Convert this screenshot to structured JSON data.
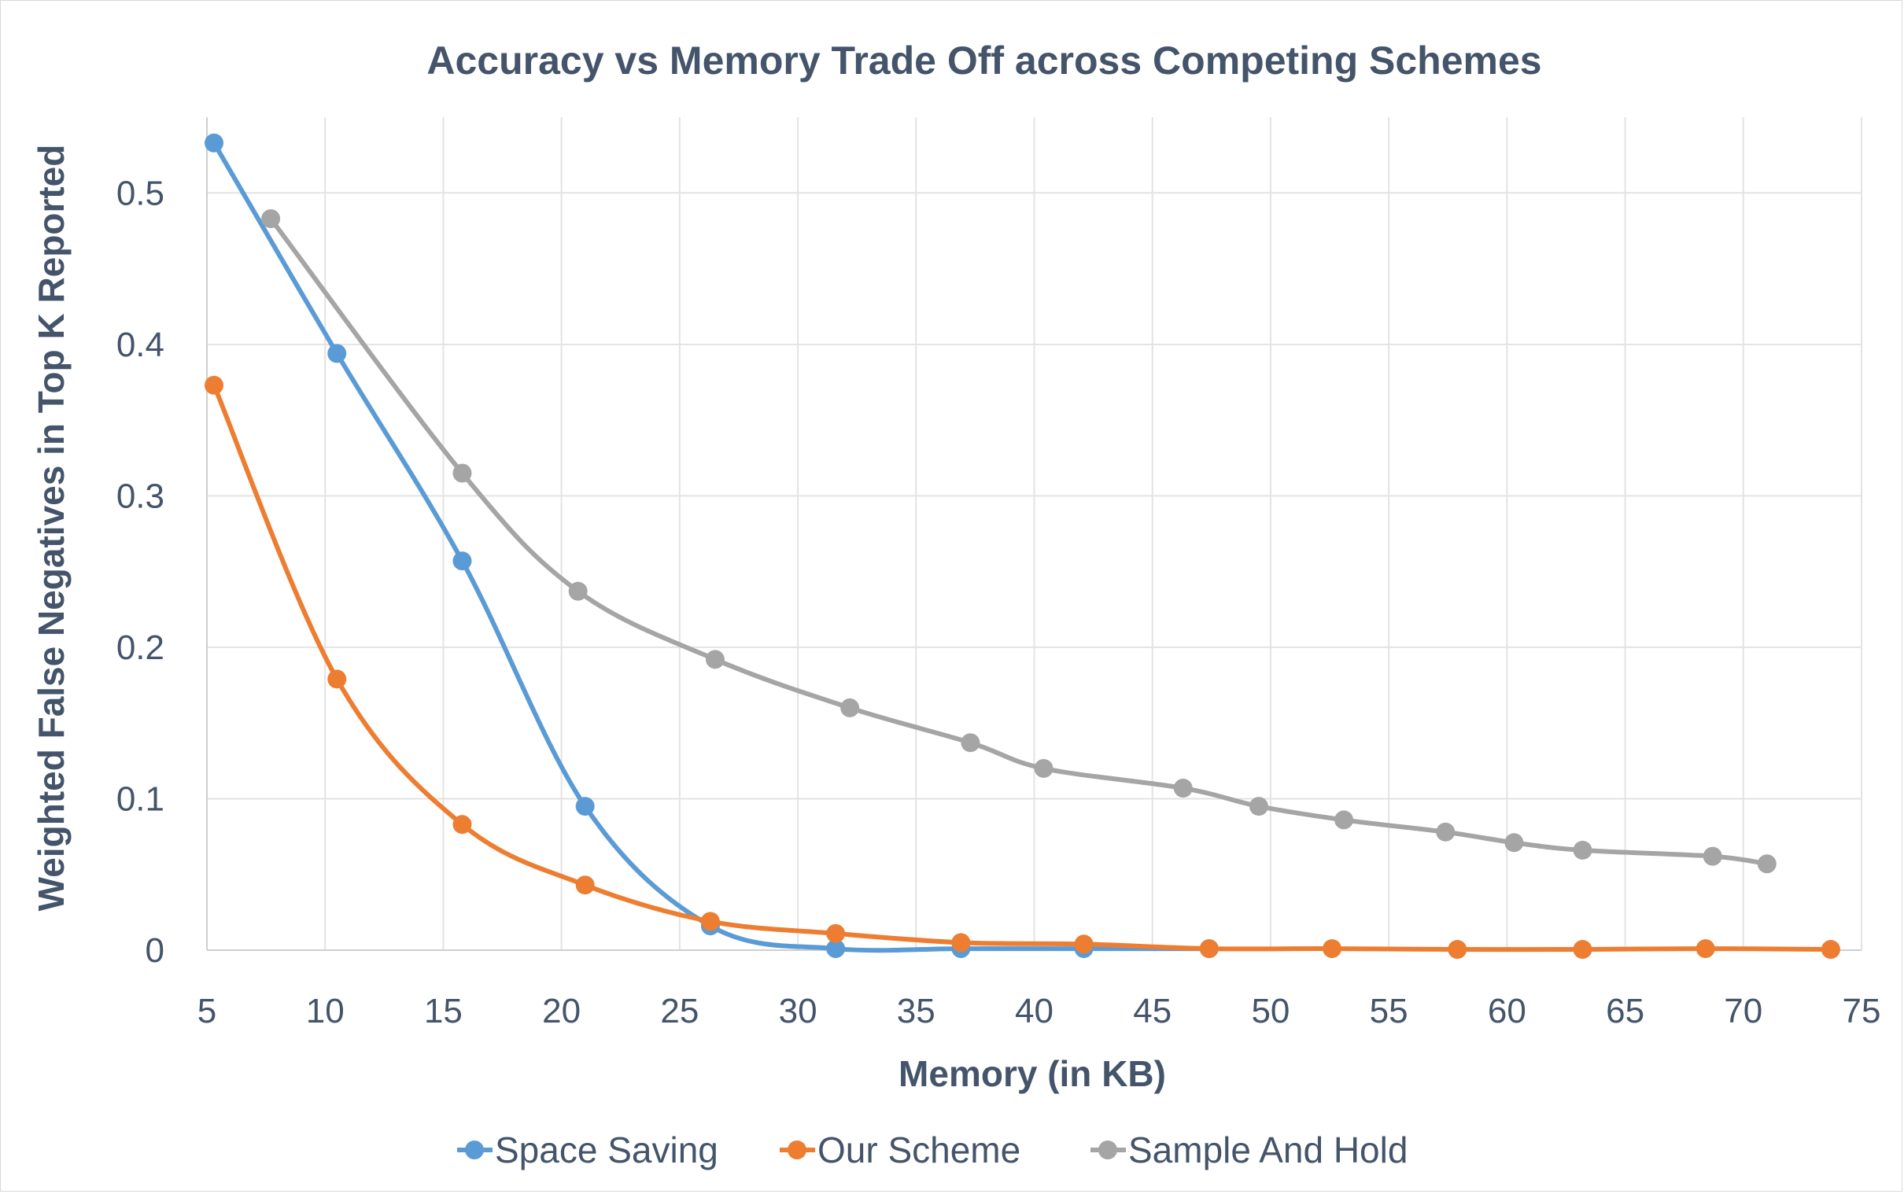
{
  "chart_data": {
    "type": "scatter",
    "title": "Accuracy vs Memory Trade Off across Competing Schemes",
    "xlabel": "Memory (in KB)",
    "ylabel": "Weighted False Negatives in Top K Reported",
    "xlim": [
      5,
      75
    ],
    "ylim": [
      0,
      0.55
    ],
    "x_ticks": [
      5,
      10,
      15,
      20,
      25,
      30,
      35,
      40,
      45,
      50,
      55,
      60,
      65,
      70,
      75
    ],
    "y_ticks": [
      0,
      0.1,
      0.2,
      0.3,
      0.4,
      0.5
    ],
    "grid": true,
    "smooth_lines": true,
    "legend_position": "bottom",
    "series": [
      {
        "name": "Space Saving",
        "color": "#5b9bd5",
        "points": [
          [
            5.3,
            0.533
          ],
          [
            10.5,
            0.394
          ],
          [
            15.8,
            0.257
          ],
          [
            21.0,
            0.095
          ],
          [
            26.3,
            0.016
          ],
          [
            31.6,
            0.001
          ],
          [
            36.9,
            0.001
          ],
          [
            42.1,
            0.001
          ],
          [
            47.4,
            0.001
          ]
        ]
      },
      {
        "name": "Our Scheme",
        "color": "#ed7d31",
        "points": [
          [
            5.3,
            0.373
          ],
          [
            10.5,
            0.179
          ],
          [
            15.8,
            0.083
          ],
          [
            21.0,
            0.043
          ],
          [
            26.3,
            0.019
          ],
          [
            31.6,
            0.011
          ],
          [
            36.9,
            0.005
          ],
          [
            42.1,
            0.004
          ],
          [
            47.4,
            0.001
          ],
          [
            52.6,
            0.001
          ],
          [
            57.9,
            0.0005
          ],
          [
            63.2,
            0.0005
          ],
          [
            68.4,
            0.001
          ],
          [
            73.7,
            0.0005
          ]
        ]
      },
      {
        "name": "Sample And Hold",
        "color": "#a5a5a5",
        "points": [
          [
            7.7,
            0.483
          ],
          [
            15.8,
            0.315
          ],
          [
            20.7,
            0.237
          ],
          [
            26.5,
            0.192
          ],
          [
            32.2,
            0.16
          ],
          [
            37.3,
            0.137
          ],
          [
            40.4,
            0.12
          ],
          [
            46.3,
            0.107
          ],
          [
            49.5,
            0.095
          ],
          [
            53.1,
            0.086
          ],
          [
            57.4,
            0.078
          ],
          [
            60.3,
            0.071
          ],
          [
            63.2,
            0.066
          ],
          [
            68.7,
            0.062
          ],
          [
            71.0,
            0.057
          ]
        ]
      }
    ]
  }
}
